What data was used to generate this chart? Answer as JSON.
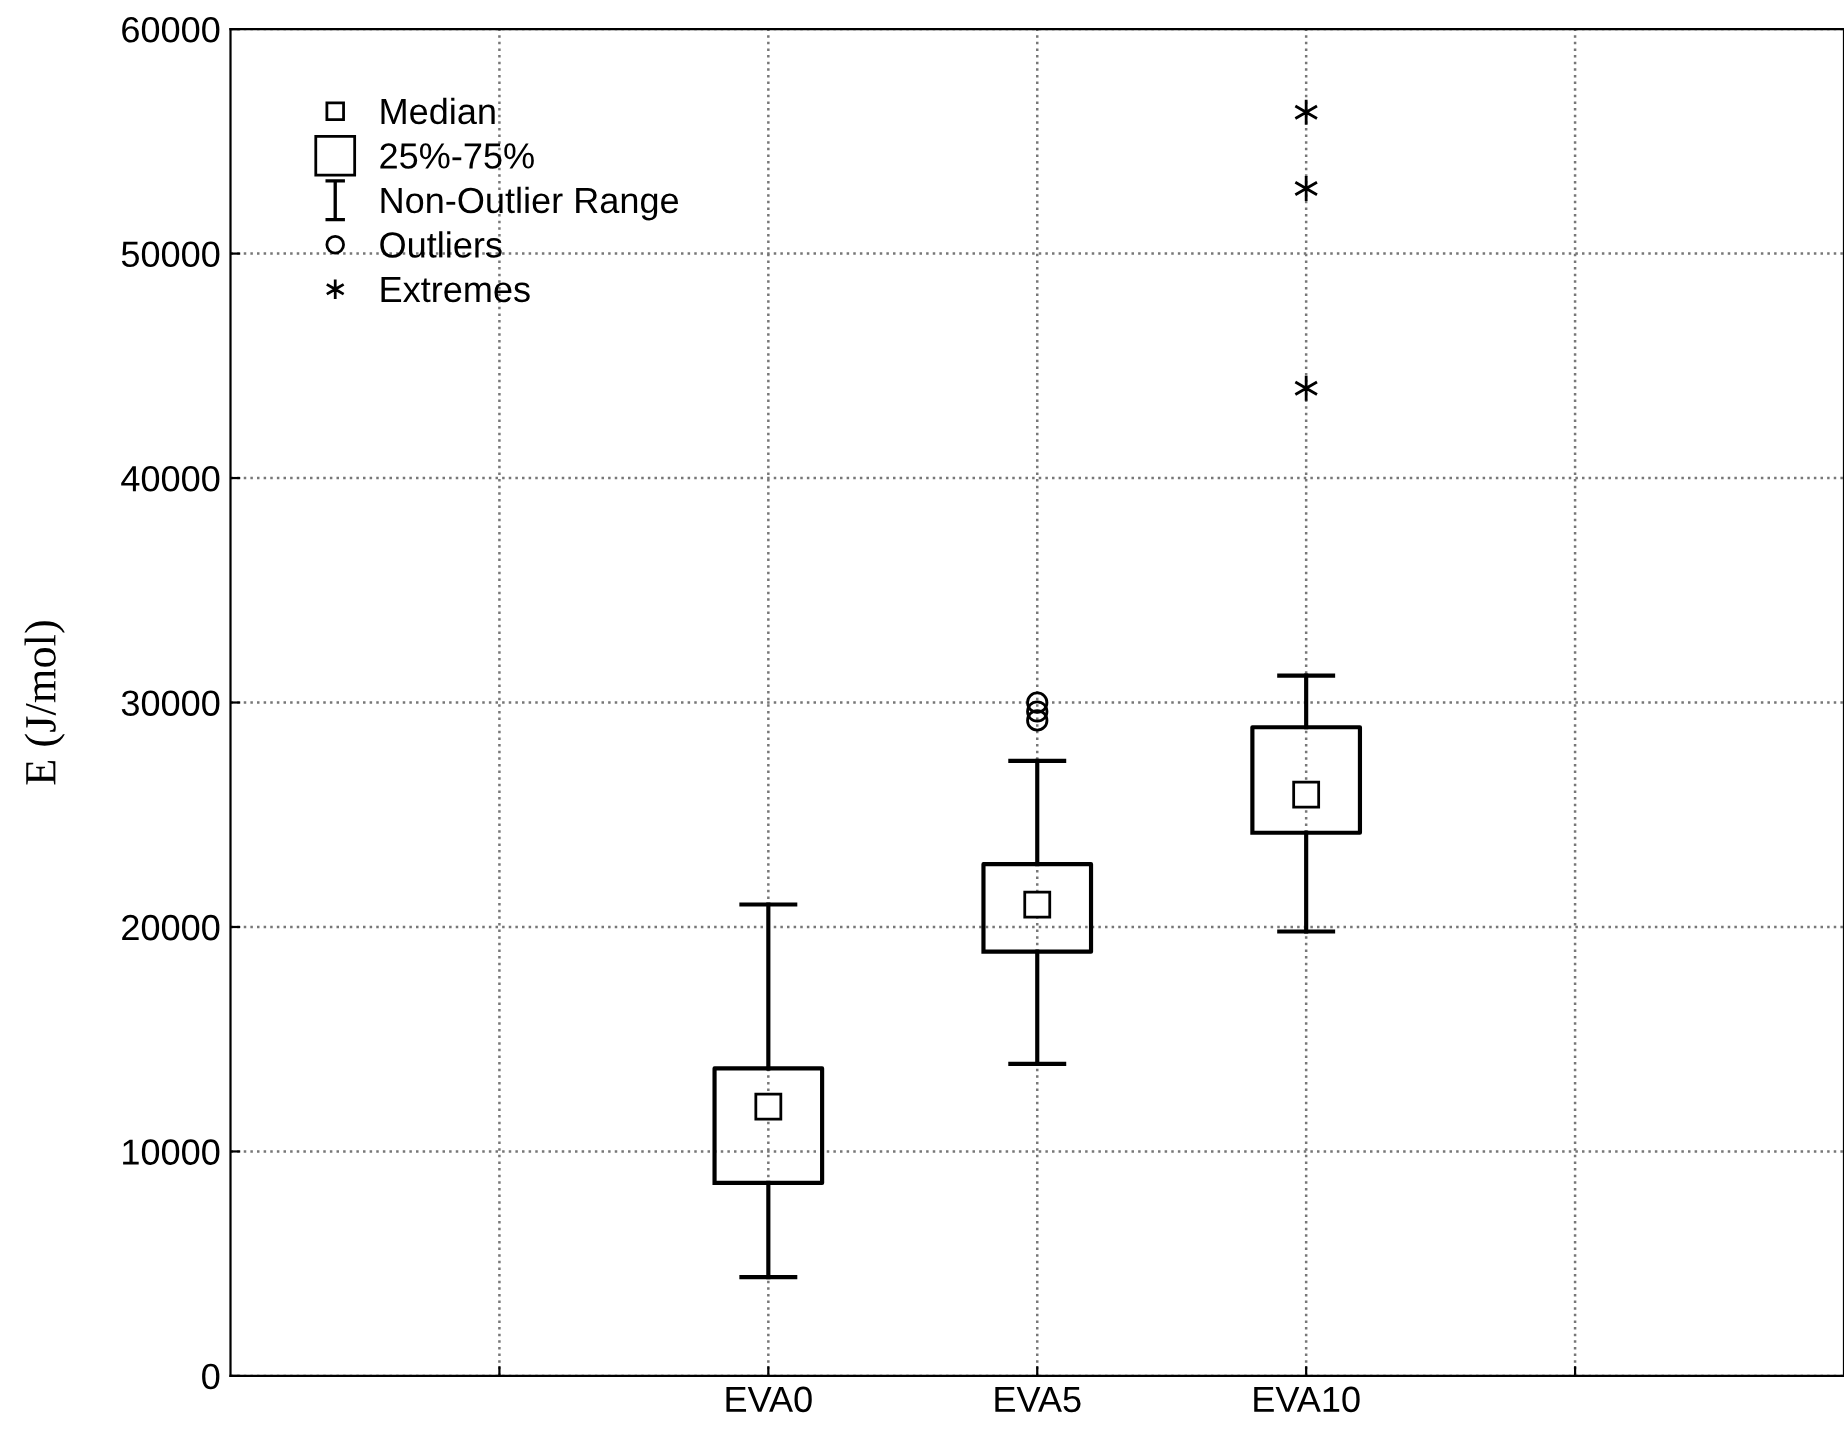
{
  "chart_data": {
    "type": "box",
    "ylabel": "E (J/mol)",
    "categories": [
      null,
      "EVA0",
      "EVA5",
      "EVA10",
      null
    ],
    "series": [
      {
        "type": "box",
        "color": "#000000",
        "boxes": [
          null,
          {
            "low": 4400,
            "q1": 8600,
            "median": 12000,
            "q3": 13700,
            "high": 21000
          },
          {
            "low": 13900,
            "q1": 18900,
            "median": 21000,
            "q3": 22800,
            "high": 27400,
            "outliers": [
              30000,
              29600,
              29200
            ]
          },
          {
            "low": 19800,
            "q1": 24200,
            "median": 25900,
            "q3": 28900,
            "high": 31200
          },
          null
        ]
      },
      {
        "type": "scatter",
        "name": "Extremes",
        "color": "#000000",
        "marker": "cross",
        "x": [
          "EVA10",
          "EVA10",
          "EVA10"
        ],
        "values": [
          56300,
          52900,
          44000
        ]
      }
    ],
    "annotations": [
      "Median",
      "25%-75%",
      "Non-Outlier Range",
      "Outliers"
    ],
    "ylim": [
      0,
      60000
    ],
    "yticks": [
      0,
      10000,
      20000,
      30000,
      40000,
      50000,
      60000
    ],
    "grid": true,
    "legend": "top left"
  }
}
